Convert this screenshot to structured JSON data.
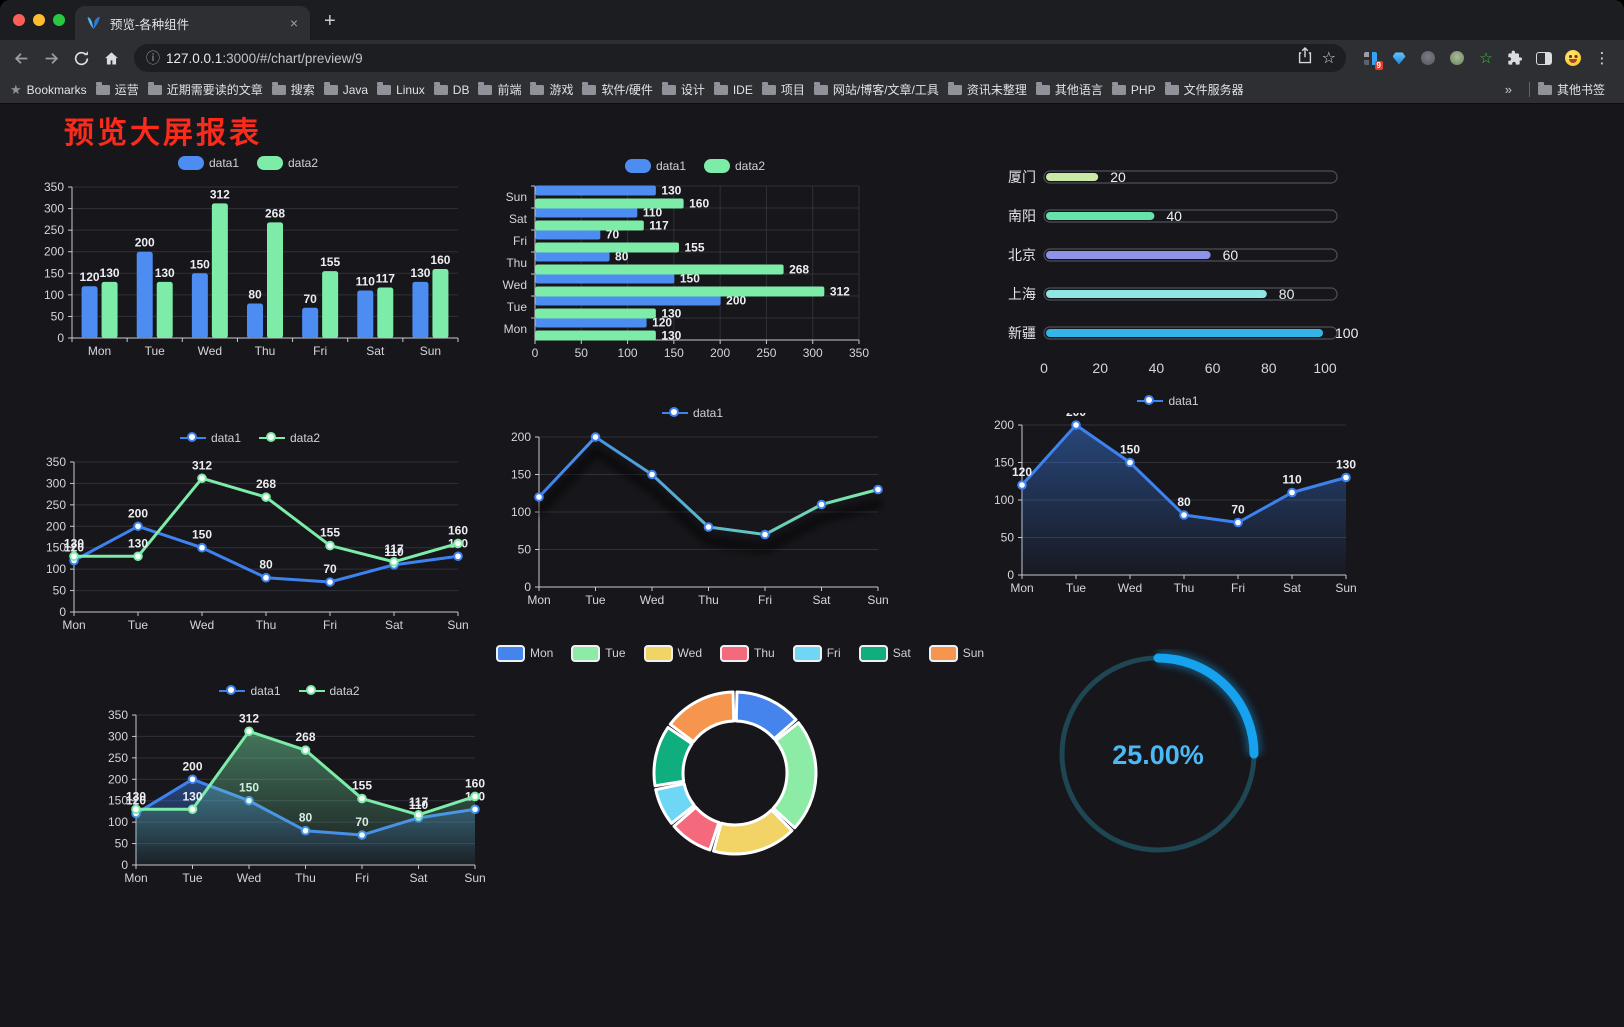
{
  "browser": {
    "tab_title": "预览-各种组件",
    "url_host": "127.0.0.1",
    "url_path": ":3000/#/chart/preview/9",
    "extensions_badge": "9",
    "icons": {
      "back": "←",
      "forward": "→",
      "info": "ⓘ",
      "star": "☆",
      "green_star": "☆",
      "dots": "⋮",
      "plus": "+",
      "close": "×",
      "bm_star": "★"
    }
  },
  "bookmarks": {
    "root_label": "Bookmarks",
    "folders": [
      "运营",
      "近期需要读的文章",
      "搜索",
      "Java",
      "Linux",
      "DB",
      "前端",
      "游戏",
      "软件/硬件",
      "设计",
      "IDE",
      "项目",
      "网站/博客/文章/工具",
      "资讯未整理",
      "其他语言",
      "PHP",
      "文件服务器"
    ],
    "overflow": "»",
    "other_label": "其他书签"
  },
  "page": {
    "title": "预览大屏报表",
    "title_color": "#fb2b1c",
    "background": "#16161b"
  },
  "chart_data": [
    {
      "id": "c1",
      "type": "bar",
      "legend": true,
      "value_labels": true,
      "categories": [
        "Mon",
        "Tue",
        "Wed",
        "Thu",
        "Fri",
        "Sat",
        "Sun"
      ],
      "series": [
        {
          "name": "data1",
          "color": "#4d8df2",
          "values": [
            120,
            200,
            150,
            80,
            70,
            110,
            130
          ]
        },
        {
          "name": "data2",
          "color": "#7ceca8",
          "values": [
            130,
            130,
            312,
            268,
            155,
            117,
            160
          ]
        }
      ],
      "ylim": [
        0,
        350
      ],
      "yticks": [
        0,
        50,
        100,
        150,
        200,
        250,
        300,
        350
      ]
    },
    {
      "id": "c2",
      "type": "hbar",
      "legend": true,
      "value_labels": true,
      "categories": [
        "Sun",
        "Sat",
        "Fri",
        "Thu",
        "Wed",
        "Tue",
        "Mon"
      ],
      "series": [
        {
          "name": "data1",
          "color": "#4d8df2",
          "values": [
            130,
            110,
            70,
            80,
            150,
            200,
            120
          ]
        },
        {
          "name": "data2",
          "color": "#7ceca8",
          "values": [
            160,
            117,
            155,
            268,
            312,
            130,
            130
          ]
        }
      ],
      "xlim": [
        0,
        350
      ],
      "xticks": [
        0,
        50,
        100,
        150,
        200,
        250,
        300,
        350
      ]
    },
    {
      "id": "c3",
      "type": "progress",
      "max": 100,
      "ticks": [
        0,
        20,
        40,
        60,
        80,
        100
      ],
      "items": [
        {
          "label": "厦门",
          "value": 20,
          "color": "#c9e9a5"
        },
        {
          "label": "南阳",
          "value": 40,
          "color": "#66e2ab"
        },
        {
          "label": "北京",
          "value": 60,
          "color": "#8e93e9"
        },
        {
          "label": "上海",
          "value": 80,
          "color": "#90e6e2"
        },
        {
          "label": "新疆",
          "value": 100,
          "color": "#34b5e8"
        }
      ]
    },
    {
      "id": "c4",
      "type": "line",
      "legend": true,
      "value_labels": true,
      "markers": true,
      "categories": [
        "Mon",
        "Tue",
        "Wed",
        "Thu",
        "Fri",
        "Sat",
        "Sun"
      ],
      "series": [
        {
          "name": "data1",
          "color": "#3e82f0",
          "values": [
            120,
            200,
            150,
            80,
            70,
            110,
            130
          ]
        },
        {
          "name": "data2",
          "color": "#7ceca8",
          "values": [
            130,
            130,
            312,
            268,
            155,
            117,
            160
          ]
        }
      ],
      "ylim": [
        0,
        350
      ],
      "yticks": [
        0,
        50,
        100,
        150,
        200,
        250,
        300,
        350
      ]
    },
    {
      "id": "c5",
      "type": "line",
      "legend": true,
      "value_labels": false,
      "markers": true,
      "shadow": true,
      "categories": [
        "Mon",
        "Tue",
        "Wed",
        "Thu",
        "Fri",
        "Sat",
        "Sun"
      ],
      "series": [
        {
          "name": "data1",
          "color": "#3e82f0",
          "gradient": [
            "#3e82f0",
            "#7ceca8"
          ],
          "values": [
            120,
            200,
            150,
            80,
            70,
            110,
            130
          ]
        }
      ],
      "ylim": [
        0,
        200
      ],
      "yticks": [
        0,
        50,
        100,
        150,
        200
      ]
    },
    {
      "id": "c6",
      "type": "line",
      "legend": true,
      "value_labels": true,
      "markers": true,
      "categories": [
        "Mon",
        "Tue",
        "Wed",
        "Thu",
        "Fri",
        "Sat",
        "Sun"
      ],
      "series": [
        {
          "name": "data1",
          "color": "#3e82f0",
          "area": true,
          "values": [
            120,
            200,
            150,
            80,
            70,
            110,
            130
          ]
        }
      ],
      "ylim": [
        0,
        200
      ],
      "yticks": [
        0,
        50,
        100,
        150,
        200
      ]
    },
    {
      "id": "c7",
      "type": "line",
      "legend": true,
      "value_labels": true,
      "markers": true,
      "categories": [
        "Mon",
        "Tue",
        "Wed",
        "Thu",
        "Fri",
        "Sat",
        "Sun"
      ],
      "series": [
        {
          "name": "data1",
          "color": "#3e82f0",
          "area": true,
          "values": [
            120,
            200,
            150,
            80,
            70,
            110,
            130
          ]
        },
        {
          "name": "data2",
          "color": "#7ceca8",
          "area": true,
          "values": [
            130,
            130,
            312,
            268,
            155,
            117,
            160
          ]
        }
      ],
      "ylim": [
        0,
        350
      ],
      "yticks": [
        0,
        50,
        100,
        150,
        200,
        250,
        300,
        350
      ]
    },
    {
      "id": "c8",
      "type": "donut",
      "legend": true,
      "items": [
        {
          "label": "Mon",
          "value": 120,
          "color": "#4584ec"
        },
        {
          "label": "Tue",
          "value": 200,
          "color": "#8ceca6"
        },
        {
          "label": "Wed",
          "value": 150,
          "color": "#f2d366"
        },
        {
          "label": "Thu",
          "value": 80,
          "color": "#f5697c"
        },
        {
          "label": "Fri",
          "value": 70,
          "color": "#70d6f5"
        },
        {
          "label": "Sat",
          "value": 110,
          "color": "#10ae7e"
        },
        {
          "label": "Sun",
          "value": 130,
          "color": "#f6954d"
        }
      ]
    },
    {
      "id": "c9",
      "type": "ring",
      "label": "25.00%",
      "percent": 25,
      "color": "#16a2ef",
      "track": "#1e4653",
      "text_color": "#4cb9f7"
    }
  ]
}
